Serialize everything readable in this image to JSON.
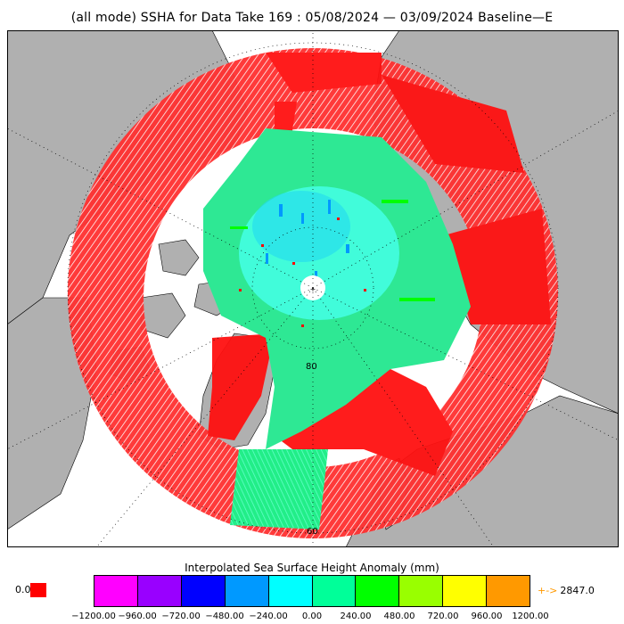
{
  "title": "(all mode) SSHA for Data Take 169 : 05/08/2024 — 03/09/2024 Baseline—E",
  "map": {
    "lat_labels": [
      "80",
      "60"
    ],
    "colors": {
      "land": "#b0b0b0",
      "ocean": "#ffffff",
      "no_data": "#ff0000",
      "lowlying": "#00ff99",
      "grid": "#000000"
    }
  },
  "colorbar": {
    "title": "Interpolated Sea Surface Height Anomaly (mm)",
    "zero_label": "0.0",
    "zero_color": "#ff0000",
    "max_label": "2847.0",
    "max_arrow": "+->",
    "ticks": [
      "−1200.00",
      "−960.00",
      "−720.00",
      "−480.00",
      "−240.00",
      "0.00",
      "240.00",
      "480.00",
      "720.00",
      "960.00",
      "1200.00"
    ],
    "colors": [
      "#ff00ff",
      "#9900ff",
      "#0000ff",
      "#0099ff",
      "#00ffff",
      "#00ff99",
      "#00ff00",
      "#99ff00",
      "#ffff00",
      "#ff9900"
    ]
  }
}
